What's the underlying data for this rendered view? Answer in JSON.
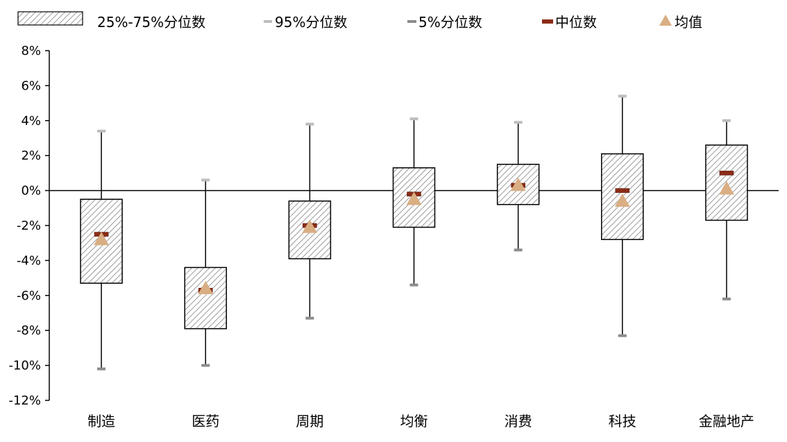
{
  "legend": {
    "iqr": "25%-75%分位数",
    "p95": "95%分位数",
    "p5": "5%分位数",
    "median": "中位数",
    "mean": "均值"
  },
  "colors": {
    "box_stroke": "#000000",
    "box_hatch": "#9a9a9a",
    "whisker": "#000000",
    "p95_cap": "#bdbdbd",
    "p5_cap": "#8c8c8c",
    "median": "#8b2c17",
    "mean": "#d9ae83"
  },
  "chart_data": {
    "type": "boxplot",
    "categories": [
      "制造",
      "医药",
      "周期",
      "均衡",
      "消费",
      "科技",
      "金融地产"
    ],
    "ylim": [
      -12,
      8
    ],
    "yticks": [
      8,
      6,
      4,
      2,
      0,
      -2,
      -4,
      -6,
      -8,
      -10,
      -12
    ],
    "ytick_labels": [
      "8%",
      "6%",
      "4%",
      "2%",
      "0%",
      "-2%",
      "-4%",
      "-6%",
      "-8%",
      "-10%",
      "-12%"
    ],
    "unit": "%",
    "p95": [
      3.4,
      0.6,
      3.8,
      4.1,
      3.9,
      5.4,
      4.0
    ],
    "q3": [
      -0.5,
      -4.4,
      -0.6,
      1.3,
      1.5,
      2.1,
      2.6
    ],
    "median": [
      -2.5,
      -5.7,
      -2.0,
      -0.2,
      0.3,
      0.0,
      1.0
    ],
    "mean": [
      -2.8,
      -5.6,
      -2.1,
      -0.5,
      0.3,
      -0.6,
      0.1
    ],
    "q1": [
      -5.3,
      -7.9,
      -3.9,
      -2.1,
      -0.8,
      -2.8,
      -1.7
    ],
    "p5": [
      -10.2,
      -10.0,
      -7.3,
      -5.4,
      -3.4,
      -8.3,
      -6.2
    ],
    "grid": false,
    "legend_position": "top"
  }
}
